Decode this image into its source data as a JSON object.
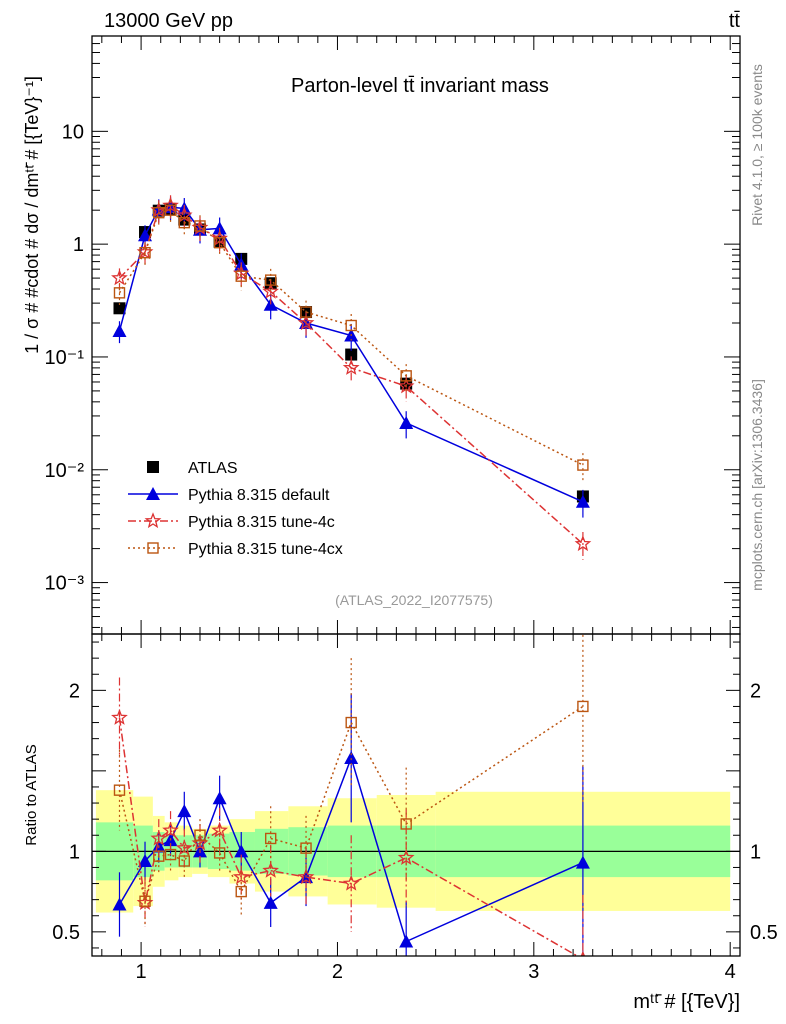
{
  "header": {
    "left_label": "13000 GeV pp",
    "right_label": "tt̄"
  },
  "side_labels": {
    "rivet": "Rivet 4.1.0, ≥ 100k events",
    "mcplots": "mcplots.cern.ch [arXiv:1306.3436]"
  },
  "chart_data": {
    "type": "line",
    "title": "Parton-level tt̄ invariant mass",
    "analysis_id": "(ATLAS_2022_I2077575)",
    "xlabel": "mᵗᵗ̄ # [{TeV}]",
    "ylabel": "1 / σ # #cdot # dσ / dmᵗᵗ̄ # [{TeV}⁻¹]",
    "ratio_ylabel": "Ratio to ATLAS",
    "x_range": [
      0.75,
      4.05
    ],
    "y_range_log": [
      0.00035,
      70
    ],
    "ratio_range": [
      0.35,
      2.35
    ],
    "x_ticks": [
      "1",
      "2",
      "3",
      "4"
    ],
    "y_ticks": [
      "10",
      "1",
      "10⁻¹",
      "10⁻²",
      "10⁻³"
    ],
    "ratio_ticks": [
      "0.5",
      "1",
      "2"
    ],
    "x": [
      0.89,
      1.02,
      1.09,
      1.15,
      1.22,
      1.3,
      1.4,
      1.51,
      1.66,
      1.84,
      2.07,
      2.35,
      3.25
    ],
    "series": [
      {
        "name": "ATLAS",
        "values": [
          0.27,
          1.28,
          1.98,
          2.05,
          1.65,
          1.35,
          1.05,
          0.74,
          0.45,
          0.25,
          0.105,
          0.058,
          0.0058
        ],
        "color": "#000000"
      },
      {
        "name": "Pythia 8.315 default",
        "values": [
          0.17,
          1.2,
          2.03,
          2.13,
          2.07,
          1.34,
          1.38,
          0.66,
          0.29,
          0.2,
          0.155,
          0.026,
          0.0052
        ],
        "ratio": [
          0.67,
          0.94,
          1.03,
          1.07,
          1.25,
          1.0,
          1.33,
          1.0,
          0.68,
          0.84,
          1.58,
          0.44,
          0.93
        ],
        "ratio_err": [
          0.2,
          0.12,
          0.1,
          0.1,
          0.12,
          0.1,
          0.14,
          0.12,
          0.15,
          0.18,
          0.4,
          0.25,
          0.6
        ],
        "color": "#0000dd"
      },
      {
        "name": "Pythia 8.315 tune-4c",
        "values": [
          0.5,
          0.85,
          2.0,
          2.2,
          1.8,
          1.4,
          1.12,
          0.55,
          0.38,
          0.2,
          0.08,
          0.055,
          0.0022
        ],
        "ratio": [
          1.83,
          0.68,
          1.08,
          1.13,
          1.02,
          1.05,
          1.13,
          0.84,
          0.88,
          0.84,
          0.8,
          0.96,
          0.33
        ],
        "ratio_err": [
          0.25,
          0.15,
          0.12,
          0.12,
          0.12,
          0.12,
          0.14,
          0.14,
          0.16,
          0.18,
          0.3,
          0.3,
          0.4
        ],
        "color": "#dd3333"
      },
      {
        "name": "Pythia 8.315 tune-4cx",
        "values": [
          0.37,
          0.84,
          1.9,
          2.0,
          1.55,
          1.45,
          1.03,
          0.52,
          0.48,
          0.25,
          0.19,
          0.068,
          0.011
        ],
        "ratio": [
          1.38,
          0.69,
          0.97,
          0.98,
          0.94,
          1.1,
          0.99,
          0.75,
          1.08,
          1.02,
          1.8,
          1.17,
          1.9
        ],
        "ratio_err": [
          0.25,
          0.15,
          0.1,
          0.1,
          0.1,
          0.1,
          0.12,
          0.15,
          0.2,
          0.2,
          0.4,
          0.35,
          0.6
        ],
        "color": "#bb5511"
      }
    ],
    "uncertainty_bins": [
      0.77,
      0.96,
      1.06,
      1.12,
      1.19,
      1.26,
      1.34,
      1.45,
      1.58,
      1.75,
      1.95,
      2.2,
      2.5,
      4.0
    ],
    "band_inner": [
      0.18,
      0.16,
      0.12,
      0.1,
      0.1,
      0.1,
      0.11,
      0.12,
      0.14,
      0.15,
      0.16,
      0.16,
      0.16
    ],
    "band_outer": [
      0.38,
      0.34,
      0.22,
      0.18,
      0.16,
      0.14,
      0.16,
      0.2,
      0.25,
      0.28,
      0.33,
      0.35,
      0.37
    ]
  }
}
